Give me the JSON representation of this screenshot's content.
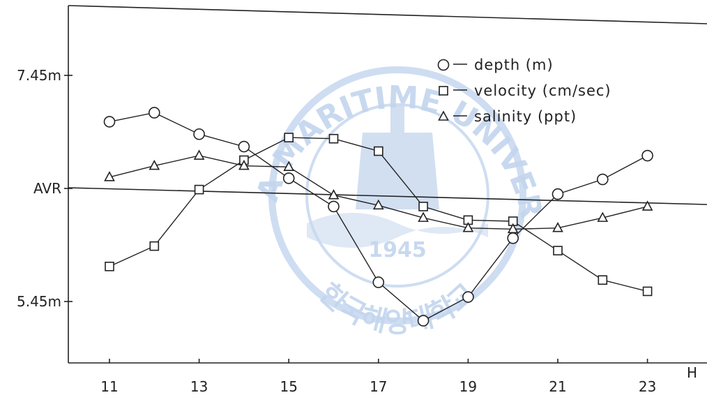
{
  "chart_data": {
    "type": "line",
    "title": "",
    "xlabel": "H",
    "ylabel": "",
    "xlim": [
      10,
      24
    ],
    "ylim": [
      5.0,
      8.0
    ],
    "x_ticks": [
      11,
      13,
      15,
      17,
      19,
      21,
      23
    ],
    "y_ticks": [
      {
        "value": 7.45,
        "label": "7.45m"
      },
      {
        "value": 6.45,
        "label": "AVR"
      },
      {
        "value": 5.45,
        "label": "5.45m"
      }
    ],
    "legend_position": "top-right",
    "series": [
      {
        "name": "depth (m)",
        "marker": "circle",
        "x": [
          11,
          12,
          13,
          14,
          15,
          16,
          17,
          18,
          19,
          20,
          21,
          22,
          23
        ],
        "y": [
          7.04,
          7.12,
          6.93,
          6.82,
          6.54,
          6.29,
          5.62,
          5.28,
          5.49,
          6.01,
          6.4,
          6.53,
          6.74
        ]
      },
      {
        "name": "velocity (cm/sec)",
        "marker": "square",
        "x": [
          11,
          12,
          13,
          14,
          15,
          16,
          17,
          18,
          19,
          20,
          21,
          22,
          23
        ],
        "y": [
          5.76,
          5.94,
          6.44,
          6.7,
          6.9,
          6.89,
          6.78,
          6.29,
          6.17,
          6.16,
          5.9,
          5.64,
          5.54
        ]
      },
      {
        "name": "salinity (ppt)",
        "marker": "triangle",
        "x": [
          11,
          12,
          13,
          14,
          15,
          16,
          17,
          18,
          19,
          20,
          21,
          22,
          23
        ],
        "y": [
          6.55,
          6.65,
          6.74,
          6.65,
          6.64,
          6.39,
          6.3,
          6.19,
          6.1,
          6.09,
          6.1,
          6.19,
          6.29
        ]
      }
    ]
  },
  "watermark": {
    "top_text": "KOREA MARITIME UNIVERSITY",
    "bottom_text": "한국해양대학교",
    "year": "1945",
    "color": "#c9d9ef"
  }
}
